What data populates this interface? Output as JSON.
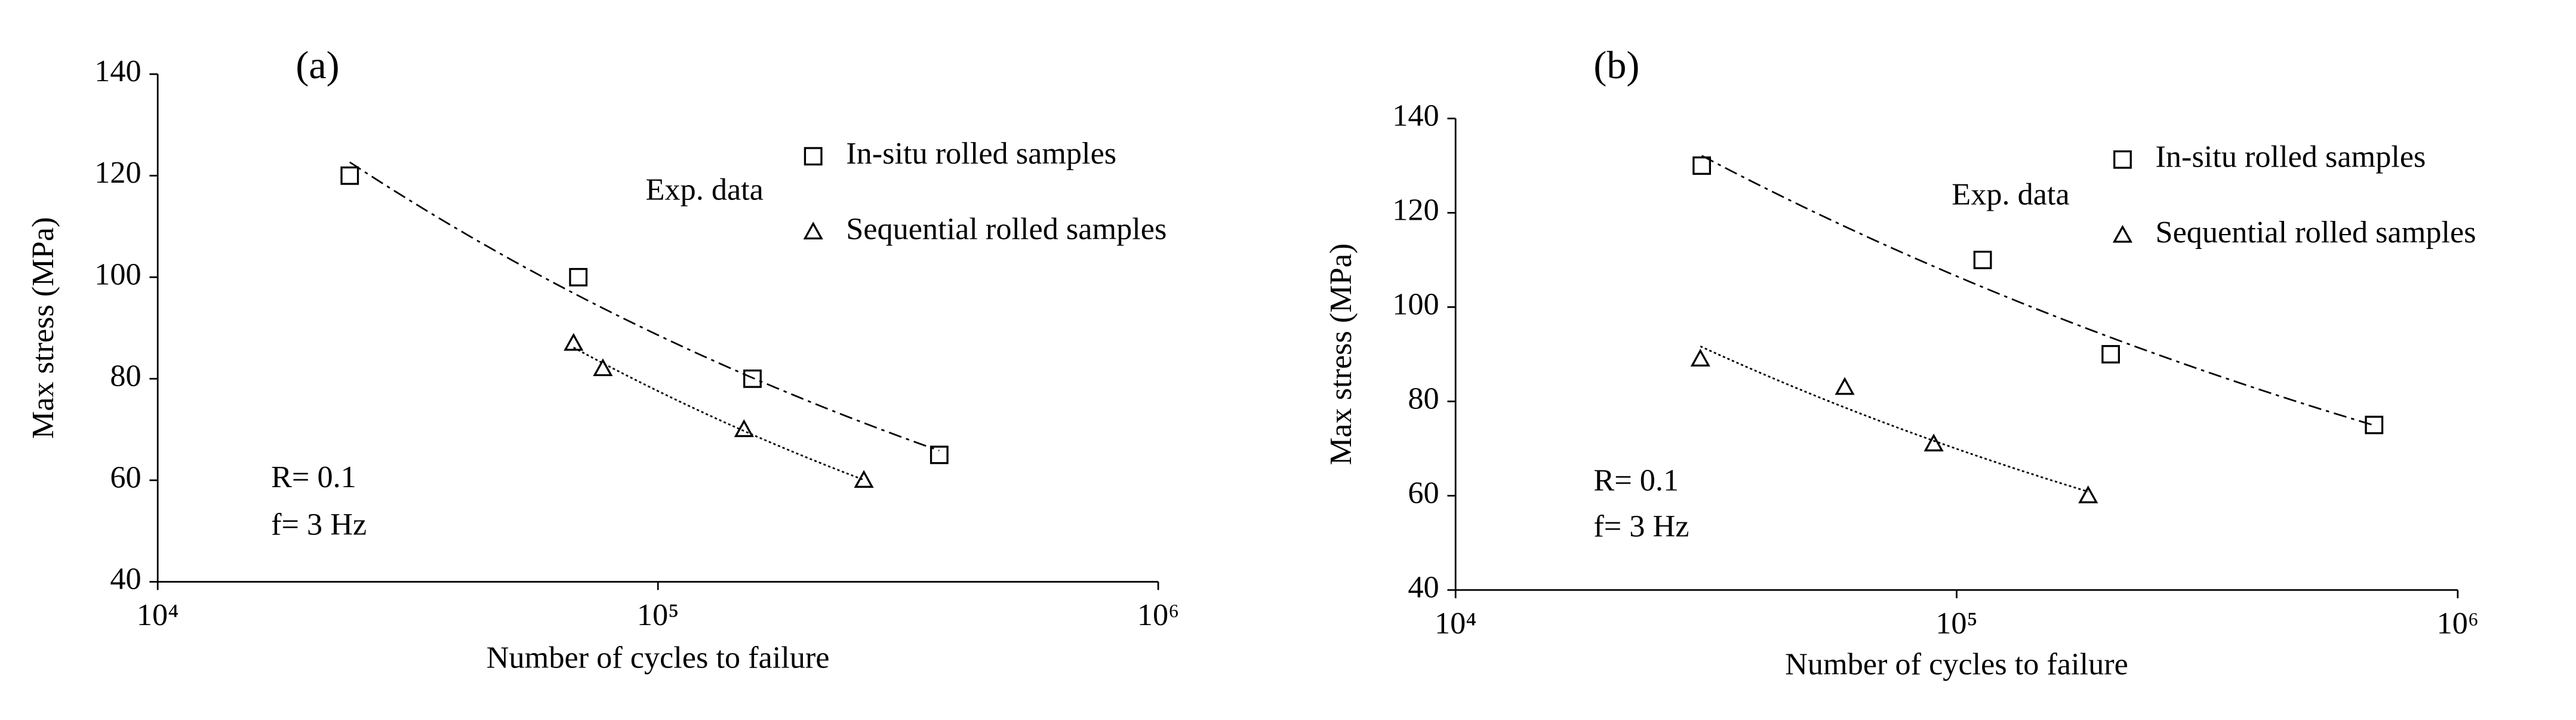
{
  "chart_data": [
    {
      "type": "scatter",
      "title": "(a)",
      "xlabel": "Number of cycles to failure",
      "ylabel": "Max stress (MPa)",
      "xscale": "log",
      "xlim": [
        10000,
        1000000
      ],
      "xticks": [
        {
          "value": 10000,
          "label": "10⁴"
        },
        {
          "value": 100000,
          "label": "10⁵"
        },
        {
          "value": 1000000,
          "label": "10⁶"
        }
      ],
      "ylim": [
        40,
        140
      ],
      "yticks": [
        40,
        60,
        80,
        100,
        120,
        140
      ],
      "trendline": "power",
      "legend_title": "Exp. data",
      "legend": "upper right",
      "annotations": [
        "R= 0.1",
        "f= 3 Hz"
      ],
      "series": [
        {
          "name": "In-situ rolled samples",
          "color": "#000000",
          "marker": "square",
          "trend_style": "dashdot",
          "x": [
            24200,
            69300,
            154500,
            365000
          ],
          "values": [
            120,
            100,
            80,
            65
          ]
        },
        {
          "name": "Sequential rolled samples",
          "color": "#000000",
          "marker": "triangle",
          "trend_style": "dotted",
          "x": [
            67800,
            77600,
            148600,
            258000
          ],
          "values": [
            87,
            82,
            70,
            60
          ]
        }
      ]
    },
    {
      "type": "scatter",
      "title": "(b)",
      "xlabel": "Number of cycles to failure",
      "ylabel": "Max stress (MPa)",
      "xscale": "log",
      "xlim": [
        10000,
        1000000
      ],
      "xticks": [
        {
          "value": 10000,
          "label": "10⁴"
        },
        {
          "value": 100000,
          "label": "10⁵"
        },
        {
          "value": 1000000,
          "label": "10⁶"
        }
      ],
      "ylim": [
        40,
        140
      ],
      "yticks": [
        40,
        60,
        80,
        100,
        120,
        140
      ],
      "trendline": "power",
      "legend_title": "Exp. data",
      "legend": "upper right",
      "annotations": [
        "R= 0.1",
        "f= 3 Hz"
      ],
      "series": [
        {
          "name": "In-situ rolled samples",
          "color": "#000000",
          "marker": "square",
          "trend_style": "dashdot",
          "x": [
            31000,
            112700,
            203000,
            681000
          ],
          "values": [
            130,
            110,
            90,
            75
          ]
        },
        {
          "name": "Sequential rolled samples",
          "color": "#000000",
          "marker": "triangle",
          "trend_style": "dotted",
          "x": [
            30800,
            59800,
            90000,
            183000
          ],
          "values": [
            89,
            83,
            71,
            60
          ]
        }
      ]
    }
  ]
}
